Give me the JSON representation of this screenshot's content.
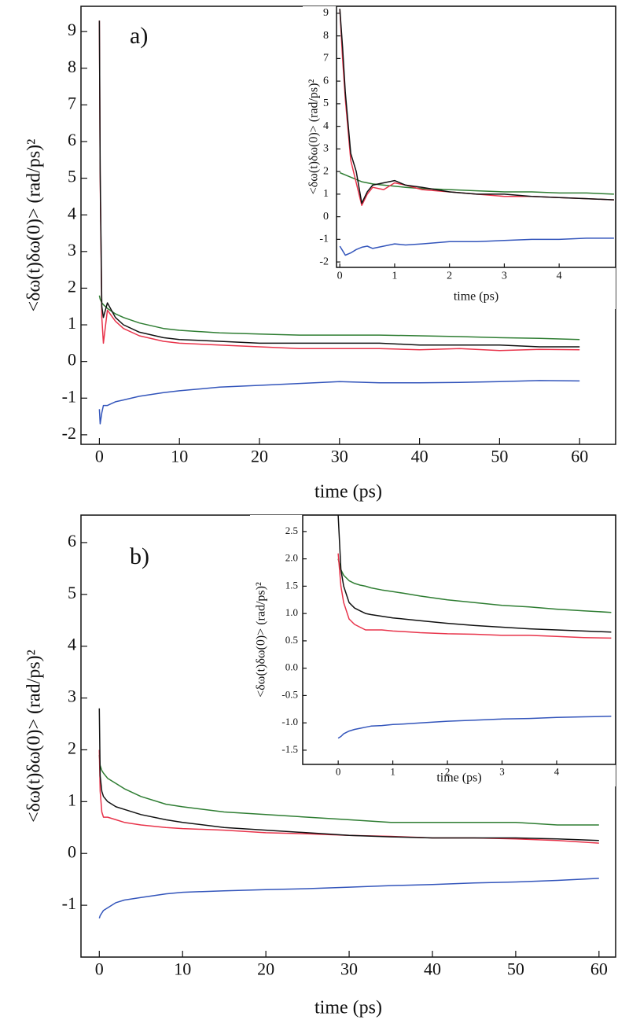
{
  "chart_data": [
    {
      "type": "line",
      "annotation": "a)",
      "xlabel": "time (ps)",
      "ylabel": "<δω(t)δω(0)> (rad/ps)²",
      "x": [
        0,
        0.1,
        0.3,
        0.5,
        1,
        2,
        3,
        5,
        8,
        10,
        15,
        20,
        25,
        30,
        35,
        40,
        45,
        50,
        55,
        60
      ],
      "xlim": [
        -2.3,
        64.5
      ],
      "ylim": [
        -2.26,
        9.69
      ],
      "xticks": [
        0,
        10,
        20,
        30,
        40,
        50,
        60
      ],
      "yticks": [
        -2,
        -1,
        0,
        1,
        2,
        3,
        4,
        5,
        6,
        7,
        8,
        9
      ],
      "series": [
        {
          "color": "#2e7d32",
          "values": [
            1.8,
            1.7,
            1.6,
            1.55,
            1.45,
            1.3,
            1.2,
            1.05,
            0.9,
            0.85,
            0.78,
            0.75,
            0.72,
            0.72,
            0.72,
            0.7,
            0.68,
            0.65,
            0.63,
            0.6
          ]
        },
        {
          "color": "#e8334a",
          "values": [
            9.3,
            5,
            1.2,
            0.5,
            1.4,
            1.1,
            0.9,
            0.7,
            0.55,
            0.5,
            0.45,
            0.4,
            0.35,
            0.35,
            0.35,
            0.32,
            0.35,
            0.3,
            0.33,
            0.32
          ]
        },
        {
          "color": "#111111",
          "values": [
            9.3,
            5.2,
            1.5,
            1.2,
            1.6,
            1.2,
            1.0,
            0.8,
            0.65,
            0.6,
            0.55,
            0.5,
            0.5,
            0.5,
            0.5,
            0.45,
            0.45,
            0.45,
            0.4,
            0.4
          ]
        },
        {
          "color": "#3355bb",
          "values": [
            -1.3,
            -1.7,
            -1.4,
            -1.2,
            -1.2,
            -1.1,
            -1.05,
            -0.95,
            -0.85,
            -0.8,
            -0.7,
            -0.65,
            -0.6,
            -0.55,
            -0.58,
            -0.58,
            -0.57,
            -0.55,
            -0.52,
            -0.53
          ]
        }
      ]
    },
    {
      "type": "line",
      "xlabel": "time (ps)",
      "ylabel": "<δω(t)δω(0)> (rad/ps)²",
      "x": [
        0,
        0.05,
        0.1,
        0.2,
        0.3,
        0.4,
        0.5,
        0.6,
        0.8,
        1,
        1.2,
        1.5,
        2,
        2.5,
        3,
        3.5,
        4,
        4.5,
        5
      ],
      "xlim": [
        -0.06,
        5.03
      ],
      "ylim": [
        -2.24,
        9.31
      ],
      "xticks": [
        0,
        1,
        2,
        3,
        4
      ],
      "yticks": [
        -2,
        -1,
        0,
        1,
        2,
        3,
        4,
        5,
        6,
        7,
        8,
        9
      ],
      "series": [
        {
          "color": "#2e7d32",
          "values": [
            1.95,
            1.9,
            1.85,
            1.75,
            1.65,
            1.55,
            1.5,
            1.45,
            1.4,
            1.35,
            1.3,
            1.25,
            1.2,
            1.15,
            1.1,
            1.1,
            1.05,
            1.05,
            1.0
          ]
        },
        {
          "color": "#e8334a",
          "values": [
            9.2,
            7,
            5.2,
            2.5,
            1.5,
            0.5,
            1.0,
            1.3,
            1.2,
            1.5,
            1.4,
            1.2,
            1.1,
            1.0,
            0.9,
            0.9,
            0.85,
            0.8,
            0.75
          ]
        },
        {
          "color": "#111111",
          "values": [
            9.2,
            7.5,
            5.5,
            2.8,
            2.0,
            0.6,
            1.1,
            1.4,
            1.5,
            1.6,
            1.4,
            1.3,
            1.1,
            1.0,
            1.0,
            0.9,
            0.85,
            0.8,
            0.75
          ]
        },
        {
          "color": "#3355bb",
          "values": [
            -1.3,
            -1.5,
            -1.7,
            -1.6,
            -1.45,
            -1.35,
            -1.3,
            -1.4,
            -1.3,
            -1.2,
            -1.25,
            -1.2,
            -1.1,
            -1.1,
            -1.05,
            -1.0,
            -1.0,
            -0.95,
            -0.95
          ]
        }
      ]
    },
    {
      "type": "line",
      "annotation": "b)",
      "xlabel": "time (ps)",
      "ylabel": "<δω(t)δω(0)> (rad/ps)²",
      "x": [
        0,
        0.1,
        0.3,
        0.5,
        1,
        2,
        3,
        5,
        8,
        10,
        15,
        20,
        25,
        30,
        35,
        40,
        45,
        50,
        55,
        60
      ],
      "xlim": [
        -2.2,
        62
      ],
      "ylim": [
        -2.0,
        6.53
      ],
      "xticks": [
        0,
        10,
        20,
        30,
        40,
        50,
        60
      ],
      "yticks": [
        -1,
        0,
        1,
        2,
        3,
        4,
        5,
        6
      ],
      "series": [
        {
          "color": "#2e7d32",
          "values": [
            1.9,
            1.7,
            1.6,
            1.55,
            1.45,
            1.35,
            1.25,
            1.1,
            0.95,
            0.9,
            0.8,
            0.75,
            0.7,
            0.65,
            0.6,
            0.6,
            0.6,
            0.6,
            0.55,
            0.55
          ]
        },
        {
          "color": "#e8334a",
          "values": [
            2.0,
            1.2,
            0.8,
            0.7,
            0.7,
            0.65,
            0.6,
            0.55,
            0.5,
            0.48,
            0.45,
            0.4,
            0.38,
            0.35,
            0.33,
            0.3,
            0.3,
            0.28,
            0.25,
            0.2
          ]
        },
        {
          "color": "#111111",
          "values": [
            2.8,
            1.5,
            1.2,
            1.1,
            1.0,
            0.9,
            0.85,
            0.75,
            0.65,
            0.6,
            0.5,
            0.45,
            0.4,
            0.35,
            0.32,
            0.3,
            0.3,
            0.3,
            0.28,
            0.25
          ]
        },
        {
          "color": "#3355bb",
          "values": [
            -1.25,
            -1.2,
            -1.15,
            -1.1,
            -1.05,
            -0.95,
            -0.9,
            -0.85,
            -0.78,
            -0.75,
            -0.72,
            -0.7,
            -0.68,
            -0.65,
            -0.62,
            -0.6,
            -0.57,
            -0.55,
            -0.52,
            -0.48
          ]
        }
      ]
    },
    {
      "type": "line",
      "xlabel": "time (ps)",
      "ylabel": "<δω(t)δω(0)> (rad/ps)²",
      "x": [
        0,
        0.05,
        0.1,
        0.2,
        0.3,
        0.4,
        0.5,
        0.6,
        0.8,
        1,
        1.2,
        1.5,
        2,
        2.5,
        3,
        3.5,
        4,
        4.5,
        5
      ],
      "xlim": [
        -0.65,
        5.08
      ],
      "ylim": [
        -1.76,
        2.8
      ],
      "xticks": [
        0,
        1,
        2,
        3,
        4
      ],
      "yticks": [
        -1.5,
        {
          "value": -1,
          "label": "-1.0"
        },
        -0.5,
        {
          "value": 0,
          "label": "0.0"
        },
        0.5,
        {
          "value": 1,
          "label": "1.0"
        },
        1.5,
        {
          "value": 2,
          "label": "2.0"
        },
        2.5
      ],
      "series": [
        {
          "color": "#2e7d32",
          "values": [
            2.0,
            1.8,
            1.7,
            1.6,
            1.55,
            1.52,
            1.5,
            1.47,
            1.43,
            1.4,
            1.37,
            1.32,
            1.25,
            1.2,
            1.15,
            1.12,
            1.08,
            1.05,
            1.02
          ]
        },
        {
          "color": "#e8334a",
          "values": [
            2.1,
            1.5,
            1.2,
            0.9,
            0.8,
            0.75,
            0.7,
            0.7,
            0.7,
            0.68,
            0.67,
            0.65,
            0.63,
            0.62,
            0.6,
            0.6,
            0.58,
            0.56,
            0.55
          ]
        },
        {
          "color": "#111111",
          "values": [
            2.8,
            1.8,
            1.5,
            1.2,
            1.1,
            1.05,
            1.0,
            0.98,
            0.95,
            0.92,
            0.9,
            0.87,
            0.82,
            0.78,
            0.75,
            0.72,
            0.7,
            0.68,
            0.66
          ]
        },
        {
          "color": "#3355bb",
          "values": [
            -1.28,
            -1.25,
            -1.2,
            -1.15,
            -1.12,
            -1.1,
            -1.08,
            -1.06,
            -1.05,
            -1.03,
            -1.02,
            -1.0,
            -0.97,
            -0.95,
            -0.93,
            -0.92,
            -0.9,
            -0.89,
            -0.88
          ]
        }
      ]
    }
  ]
}
